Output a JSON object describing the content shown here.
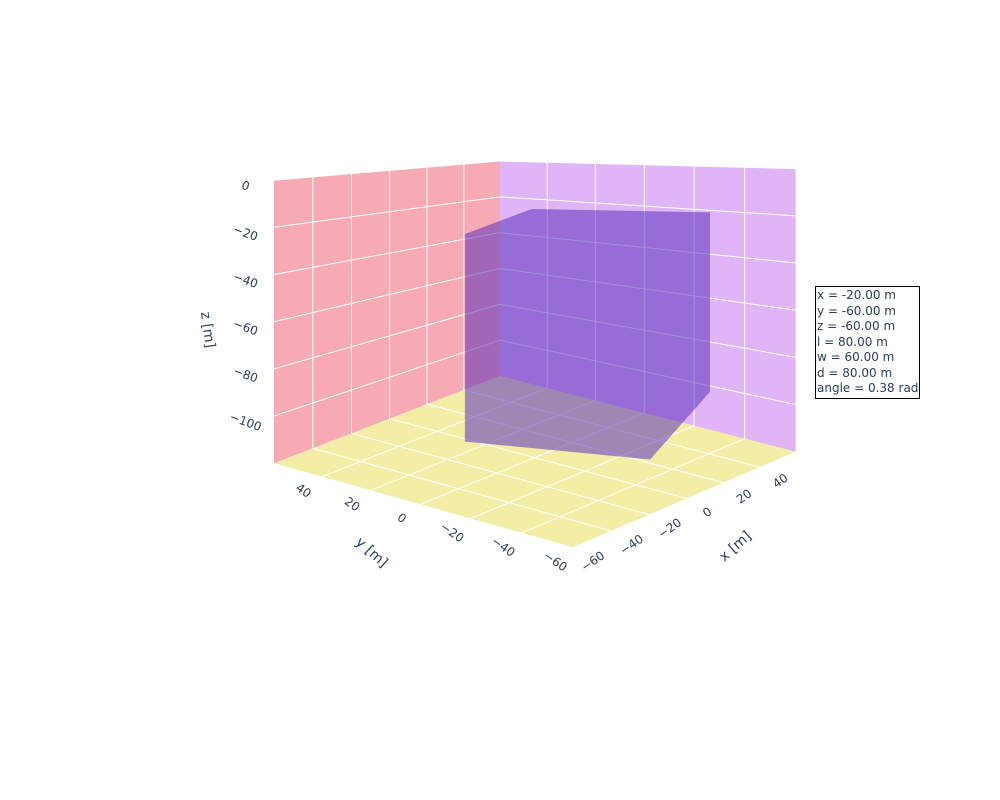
{
  "chart_data": {
    "type": "mesh3d",
    "title": "",
    "colors": {
      "xz_wall": "#f7aab4",
      "yz_wall": "#dfb5f7",
      "floor": "#f3eda5",
      "grid": "#ffffff",
      "mesh": "#5a2fbf",
      "text": "#2a3f5f"
    },
    "axes": {
      "x": {
        "title": "x [m]",
        "range": [
          -60,
          60
        ],
        "ticks": [
          -60,
          -40,
          -20,
          0,
          20,
          40
        ]
      },
      "y": {
        "title": "y [m]",
        "range": [
          -60,
          60
        ],
        "ticks": [
          -60,
          -40,
          -20,
          0,
          20,
          40
        ]
      },
      "z": {
        "title": "z [m]",
        "range": [
          -120,
          0
        ],
        "ticks": [
          0,
          -20,
          -40,
          -60,
          -80,
          -100
        ]
      }
    },
    "box": {
      "x": -20,
      "y": -60,
      "z": -60,
      "l": 80,
      "w": 60,
      "d": 80,
      "angle": 0.38
    },
    "annotation": [
      "x = -20.00 m",
      "y = -60.00 m",
      "z = -60.00 m",
      "l = 80.00 m",
      "w = 60.00 m",
      "d = 80.00 m",
      "angle = 0.38 rad"
    ]
  }
}
